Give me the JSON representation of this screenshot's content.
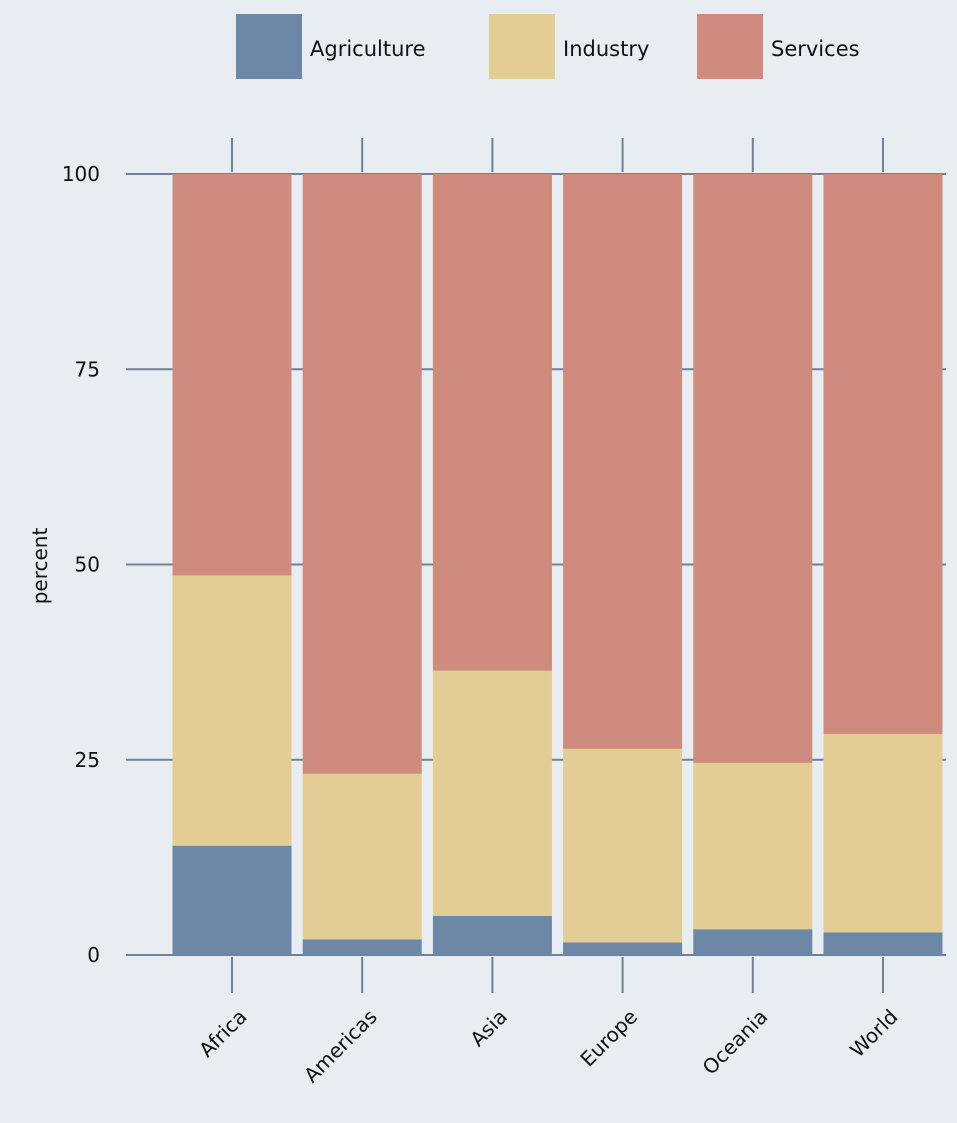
{
  "chart_data": {
    "type": "bar",
    "stacked": true,
    "categories": [
      "Africa",
      "Americas",
      "Asia",
      "Europe",
      "Oceania",
      "World"
    ],
    "series": [
      {
        "name": "Agriculture",
        "color": "#6d87a6",
        "values": [
          14,
          2,
          5,
          1.6,
          3.3,
          2.9
        ]
      },
      {
        "name": "Industry",
        "color": "#e3cd94",
        "values": [
          34.6,
          21.2,
          31.4,
          24.8,
          21.3,
          25.4
        ]
      },
      {
        "name": "Services",
        "color": "#cf8b7e",
        "values": [
          51.4,
          76.8,
          63.6,
          73.6,
          75.4,
          71.7
        ]
      }
    ],
    "ylabel": "percent",
    "xlabel": "",
    "title": "",
    "ylim": [
      0,
      100
    ],
    "yticks": [
      0,
      25,
      50,
      75,
      100
    ],
    "legend_position": "top",
    "grid": true
  }
}
